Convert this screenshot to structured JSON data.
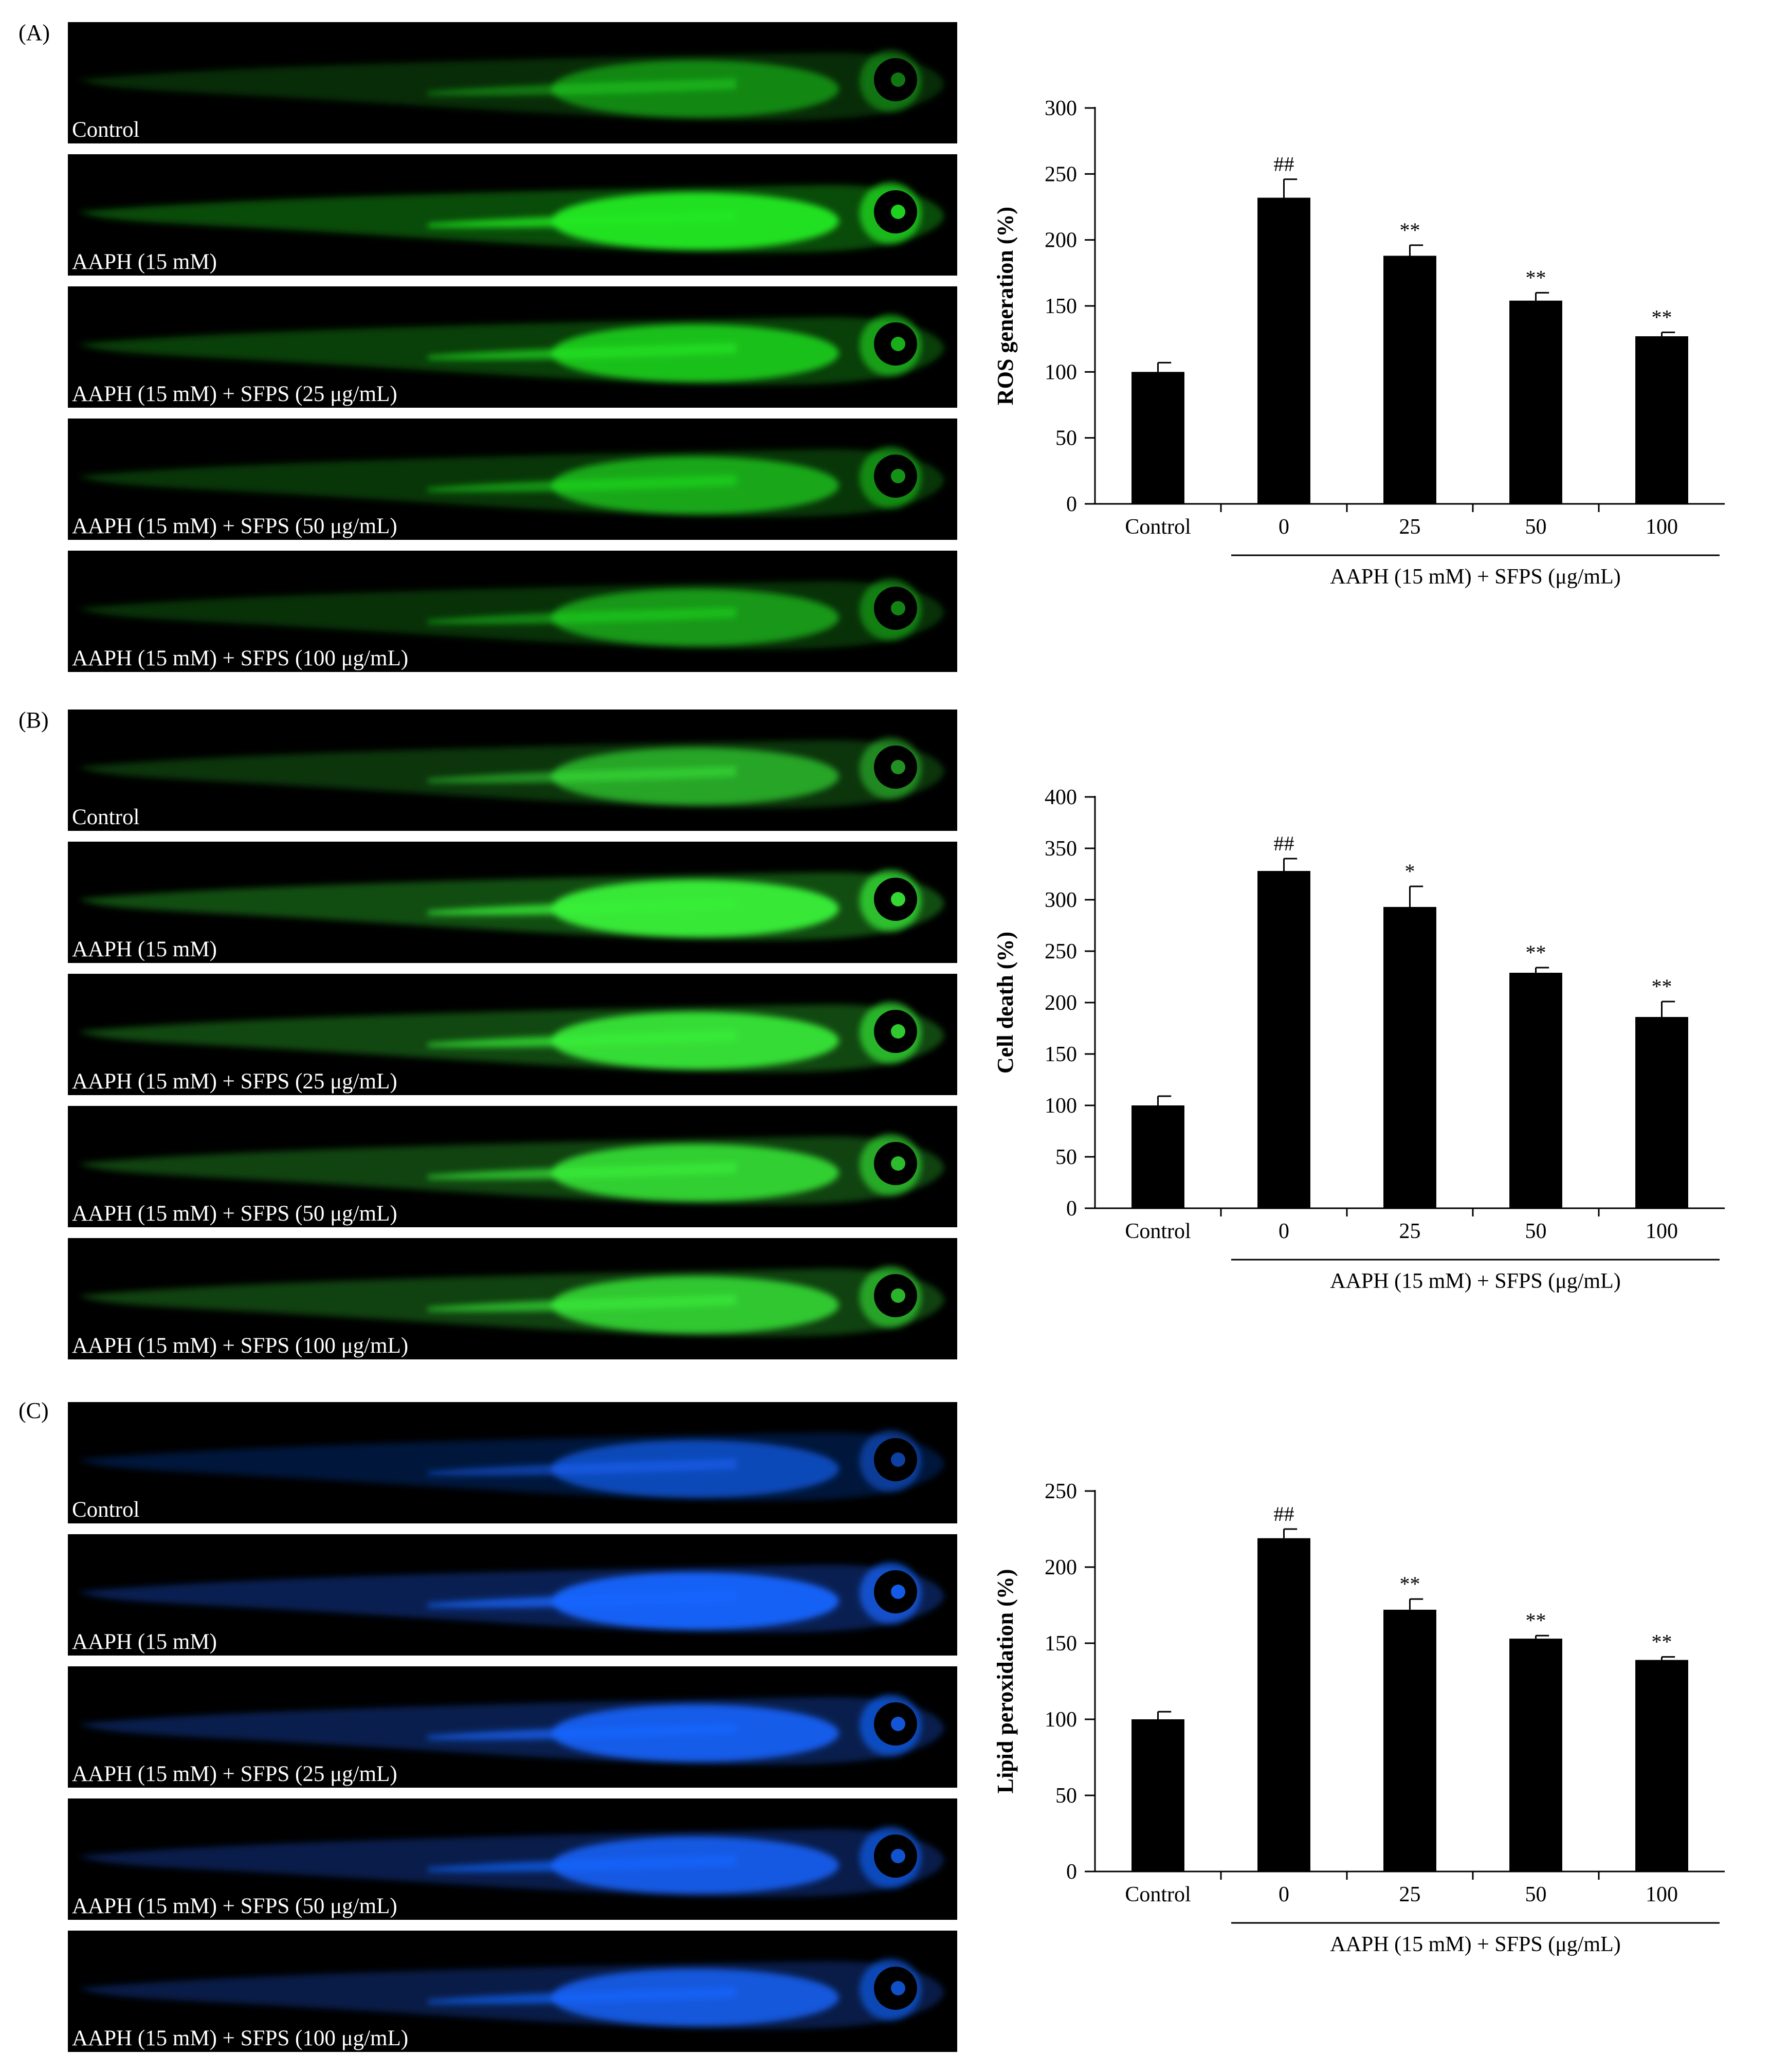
{
  "panels": [
    {
      "letter": "(A)",
      "stain_color": "#22e822",
      "images": [
        {
          "label": "Control",
          "intensity": 0.35
        },
        {
          "label": "AAPH (15 mM)",
          "intensity": 1.0
        },
        {
          "label": "AAPH (15 mM) + SFPS (25 μg/mL)",
          "intensity": 0.75
        },
        {
          "label": "AAPH (15 mM) + SFPS (50 μg/mL)",
          "intensity": 0.55
        },
        {
          "label": "AAPH (15 mM) + SFPS (100 μg/mL)",
          "intensity": 0.45
        }
      ]
    },
    {
      "letter": "(B)",
      "stain_color": "#39f039",
      "images": [
        {
          "label": "Control",
          "intensity": 0.5
        },
        {
          "label": "AAPH (15 mM)",
          "intensity": 1.0
        },
        {
          "label": "AAPH (15 mM) + SFPS (25 μg/mL)",
          "intensity": 0.9
        },
        {
          "label": "AAPH (15 mM) + SFPS (50 μg/mL)",
          "intensity": 0.8
        },
        {
          "label": "AAPH (15 mM) + SFPS (100 μg/mL)",
          "intensity": 0.75
        }
      ]
    },
    {
      "letter": "(C)",
      "stain_color": "#1565ff",
      "images": [
        {
          "label": "Control",
          "intensity": 0.55
        },
        {
          "label": "AAPH (15 mM)",
          "intensity": 1.0
        },
        {
          "label": "AAPH (15 mM) + SFPS (25 μg/mL)",
          "intensity": 0.9
        },
        {
          "label": "AAPH (15 mM) + SFPS (50 μg/mL)",
          "intensity": 0.85
        },
        {
          "label": "AAPH (15 mM) + SFPS (100 μg/mL)",
          "intensity": 0.8
        }
      ]
    }
  ],
  "chart_data": [
    {
      "type": "bar",
      "title": "",
      "xlabel": "",
      "ylabel": "ROS generation (%)",
      "ylim": [
        0,
        300
      ],
      "yticks": [
        0,
        50,
        100,
        150,
        200,
        250,
        300
      ],
      "categories": [
        "Control",
        "0",
        "25",
        "50",
        "100"
      ],
      "values": [
        100,
        232,
        188,
        154,
        127
      ],
      "errors": [
        7,
        14,
        8,
        6,
        3
      ],
      "annotations": [
        "",
        "##",
        "**",
        "**",
        "**"
      ],
      "group_label": "AAPH (15 mM) + SFPS (μg/mL)",
      "bar_color": "#000000"
    },
    {
      "type": "bar",
      "title": "",
      "xlabel": "",
      "ylabel": "Cell death (%)",
      "ylim": [
        0,
        400
      ],
      "yticks": [
        0,
        50,
        100,
        150,
        200,
        250,
        300,
        350,
        400
      ],
      "categories": [
        "Control",
        "0",
        "25",
        "50",
        "100"
      ],
      "values": [
        100,
        328,
        293,
        229,
        186
      ],
      "errors": [
        9,
        12,
        20,
        5,
        15
      ],
      "annotations": [
        "",
        "##",
        "*",
        "**",
        "**"
      ],
      "group_label": "AAPH (15 mM) + SFPS (μg/mL)",
      "bar_color": "#000000"
    },
    {
      "type": "bar",
      "title": "",
      "xlabel": "",
      "ylabel": "Lipid peroxidation (%)",
      "ylim": [
        0,
        250
      ],
      "yticks": [
        0,
        50,
        100,
        150,
        200,
        250
      ],
      "categories": [
        "Control",
        "0",
        "25",
        "50",
        "100"
      ],
      "values": [
        100,
        219,
        172,
        153,
        139
      ],
      "errors": [
        5,
        6,
        7,
        2,
        2
      ],
      "annotations": [
        "",
        "##",
        "**",
        "**",
        "**"
      ],
      "group_label": "AAPH (15 mM) + SFPS (μg/mL)",
      "bar_color": "#000000"
    }
  ]
}
